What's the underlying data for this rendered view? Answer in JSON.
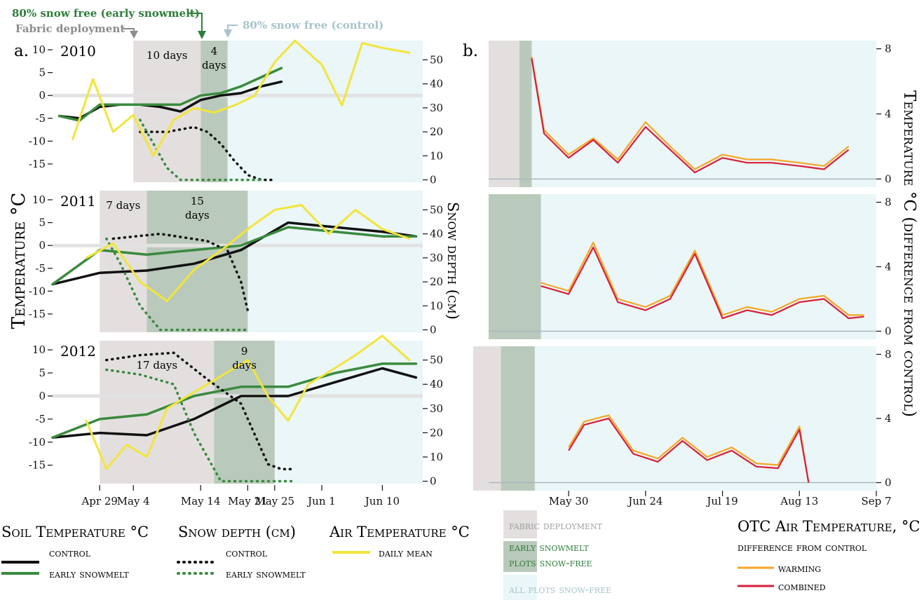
{
  "annotations": {
    "early_snowmelt": "80% snow free (early snowmelt)",
    "fabric": "Fabric deployment",
    "control": "80% snow free (control)"
  },
  "colors": {
    "fabric_bg": "#e3dfdf",
    "early_bg": "#b9c9bb",
    "snowfree_bg": "#eaf6f8",
    "soil_control": "#111111",
    "soil_early": "#3a8a3e",
    "snow_control": "#111111",
    "snow_early": "#3a8a3e",
    "air_daily": "#f2e53a",
    "warming": "#f5a623",
    "combined": "#d71f3a"
  },
  "panel_a": {
    "label": "a.",
    "ylabel_left": "Temperature °C",
    "ylabel_right": "Snow depth (cm)",
    "x_ticks": [
      "Apr 29",
      "May 4",
      "May 14",
      "May 21",
      "May 25",
      "Jun 1",
      "Jun 10"
    ],
    "left_ticks": [
      "10",
      "5",
      "0",
      "-5",
      "-10",
      "-15"
    ],
    "right_ticks": [
      "50",
      "40",
      "30",
      "20",
      "10",
      "0"
    ],
    "years": [
      {
        "year": "2010",
        "fabric_days": "10 days",
        "early_days": "4\ndays"
      },
      {
        "year": "2011",
        "fabric_days": "7 days",
        "early_days": "15\ndays"
      },
      {
        "year": "2012",
        "fabric_days": "17 days",
        "early_days": "9\ndays"
      }
    ]
  },
  "panel_b": {
    "label": "b.",
    "ylabel": "Temperature °C (difference from control)",
    "x_ticks": [
      "May 30",
      "Jun 24",
      "Jul 19",
      "Aug 13",
      "Sep 7"
    ],
    "y_ticks": [
      "8",
      "4",
      "0"
    ]
  },
  "legend": {
    "soil_title": "Soil Temperature °C",
    "soil_control": "control",
    "soil_early": "early snowmelt",
    "snow_title": "Snow depth (cm)",
    "snow_control": "control",
    "snow_early": "early snowmelt",
    "air_title": "Air Temperature °C",
    "air_daily": "daily mean",
    "fabric": "fabric deployment",
    "early_line1": "early snowmelt",
    "early_line2": "plots snow-free",
    "allfree": "all plots snow-free",
    "otc_title": "OTC Air Temperature, °C",
    "otc_sub": "difference from control",
    "warming": "warming",
    "combined": "combined"
  },
  "chart_data": [
    {
      "type": "line",
      "title": "2010",
      "x_unit": "date",
      "ylim_left": [
        -19,
        12
      ],
      "ylim_right": [
        -1,
        58
      ],
      "shading": {
        "fabric": [
          "May 4",
          "May 14"
        ],
        "early_snowfree": [
          "May 14",
          "May 18"
        ],
        "all_snowfree_from": "May 18"
      },
      "series": [
        {
          "name": "Soil control",
          "x": [
            "Apr 23",
            "Apr 26",
            "Apr 29",
            "May 2",
            "May 5",
            "May 8",
            "May 11",
            "May 14",
            "May 17",
            "May 20",
            "May 23",
            "May 26"
          ],
          "values": [
            -4.5,
            -5,
            -2.5,
            -2,
            -2,
            -2.5,
            -3.5,
            -1,
            0,
            0.5,
            2,
            3
          ]
        },
        {
          "name": "Soil early snowmelt",
          "x": [
            "Apr 23",
            "Apr 26",
            "Apr 29",
            "May 2",
            "May 5",
            "May 8",
            "May 11",
            "May 14",
            "May 17",
            "May 20",
            "May 23",
            "May 26"
          ],
          "values": [
            -4.5,
            -5.5,
            -2,
            -2,
            -2,
            -2,
            -2,
            0,
            0.5,
            2,
            4,
            6
          ]
        },
        {
          "name": "Snow control",
          "x": [
            "May 5",
            "May 9",
            "May 13",
            "May 15",
            "May 17",
            "May 19",
            "May 21",
            "May 23",
            "May 25"
          ],
          "values": [
            20,
            20,
            22,
            20,
            15,
            8,
            2,
            0,
            0
          ]
        },
        {
          "name": "Snow early snowmelt",
          "x": [
            "May 5",
            "May 7",
            "May 9",
            "May 11",
            "May 13",
            "May 15",
            "May 19",
            "May 23"
          ],
          "values": [
            25,
            15,
            5,
            0,
            0,
            0,
            0,
            0
          ]
        },
        {
          "name": "Air daily mean",
          "x": [
            "Apr 25",
            "Apr 28",
            "May 1",
            "May 4",
            "May 7",
            "May 10",
            "May 13",
            "May 16",
            "May 19",
            "May 22",
            "May 25",
            "May 28",
            "Jun 1",
            "Jun 4",
            "Jun 7",
            "Jun 10",
            "Jun 14"
          ],
          "values": [
            17,
            42,
            20,
            27,
            10,
            25,
            30,
            28,
            31,
            35,
            49,
            58,
            48,
            31,
            57,
            55,
            53
          ]
        }
      ]
    },
    {
      "type": "line",
      "title": "2011",
      "x_unit": "date",
      "ylim_left": [
        -19,
        12
      ],
      "ylim_right": [
        -1,
        58
      ],
      "shading": {
        "fabric": [
          "Apr 29",
          "May 6"
        ],
        "early_snowfree": [
          "May 6",
          "May 21"
        ],
        "all_snowfree_from": "May 21"
      },
      "series": [
        {
          "name": "Soil control",
          "x": [
            "Apr 22",
            "Apr 29",
            "May 6",
            "May 13",
            "May 20",
            "May 27",
            "Jun 3",
            "Jun 10",
            "Jun 15"
          ],
          "values": [
            -8.5,
            -6,
            -5.5,
            -4,
            -1,
            5,
            4,
            3,
            2
          ]
        },
        {
          "name": "Soil early snowmelt",
          "x": [
            "Apr 22",
            "Apr 29",
            "May 6",
            "May 13",
            "May 20",
            "May 27",
            "Jun 3",
            "Jun 10",
            "Jun 15"
          ],
          "values": [
            -8.5,
            -1,
            -2,
            -1,
            0,
            4,
            3,
            2,
            2
          ]
        },
        {
          "name": "Snow control",
          "x": [
            "May 1",
            "May 8",
            "May 15",
            "May 18",
            "May 20",
            "May 21"
          ],
          "values": [
            38,
            40,
            37,
            33,
            20,
            8
          ]
        },
        {
          "name": "Snow early snowmelt",
          "x": [
            "Apr 30",
            "May 2",
            "May 5",
            "May 8",
            "May 12",
            "May 21"
          ],
          "values": [
            38,
            28,
            10,
            0,
            0,
            0
          ]
        },
        {
          "name": "Air daily mean",
          "x": [
            "Apr 27",
            "May 1",
            "May 5",
            "May 9",
            "May 13",
            "May 17",
            "May 21",
            "May 25",
            "May 29",
            "Jun 2",
            "Jun 6",
            "Jun 10",
            "Jun 14"
          ],
          "values": [
            30,
            36,
            20,
            12,
            25,
            33,
            42,
            50,
            52,
            40,
            50,
            42,
            38
          ]
        }
      ]
    },
    {
      "type": "line",
      "title": "2012",
      "x_unit": "date",
      "ylim_left": [
        -19,
        12
      ],
      "ylim_right": [
        -1,
        58
      ],
      "shading": {
        "fabric": [
          "Apr 29",
          "May 16"
        ],
        "early_snowfree": [
          "May 16",
          "May 25"
        ],
        "all_snowfree_from": "May 25"
      },
      "series": [
        {
          "name": "Soil control",
          "x": [
            "Apr 22",
            "Apr 29",
            "May 6",
            "May 13",
            "May 20",
            "May 27",
            "Jun 3",
            "Jun 10",
            "Jun 15"
          ],
          "values": [
            -9,
            -8,
            -8.5,
            -5,
            0,
            0,
            3,
            6,
            4
          ]
        },
        {
          "name": "Soil early snowmelt",
          "x": [
            "Apr 22",
            "Apr 29",
            "May 6",
            "May 13",
            "May 20",
            "May 27",
            "Jun 3",
            "Jun 10",
            "Jun 15"
          ],
          "values": [
            -9,
            -5,
            -4,
            0,
            2,
            2,
            5,
            7,
            7
          ]
        },
        {
          "name": "Snow control",
          "x": [
            "Apr 30",
            "May 5",
            "May 10",
            "May 15",
            "May 20",
            "May 24",
            "May 26",
            "May 28"
          ],
          "values": [
            50,
            52,
            53,
            42,
            32,
            7,
            5,
            5
          ]
        },
        {
          "name": "Snow early snowmelt",
          "x": [
            "Apr 30",
            "May 5",
            "May 10",
            "May 13",
            "May 17",
            "May 21",
            "May 25",
            "May 28"
          ],
          "values": [
            46,
            44,
            40,
            20,
            0,
            0,
            0,
            0
          ]
        },
        {
          "name": "Air daily mean",
          "x": [
            "Apr 27",
            "Apr 30",
            "May 3",
            "May 6",
            "May 9",
            "May 12",
            "May 15",
            "May 18",
            "May 21",
            "May 24",
            "May 27",
            "May 30",
            "Jun 2",
            "Jun 6",
            "Jun 10",
            "Jun 14"
          ],
          "values": [
            25,
            5,
            15,
            10,
            30,
            35,
            40,
            45,
            50,
            35,
            25,
            40,
            45,
            52,
            60,
            50
          ]
        }
      ]
    },
    {
      "type": "line",
      "title": "",
      "x_unit": "date",
      "ylim": [
        -0.5,
        8.5
      ],
      "shading": {
        "fabric": [
          "May 4",
          "May 14"
        ],
        "early_snowfree": [
          "May 14",
          "May 18"
        ],
        "all_snowfree_from": "May 18"
      },
      "series": [
        {
          "name": "warming",
          "x": [
            "May 18",
            "May 22",
            "May 30",
            "Jun 7",
            "Jun 15",
            "Jun 24",
            "Jul 2",
            "Jul 10",
            "Jul 19",
            "Jul 27",
            "Aug 4",
            "Aug 13",
            "Aug 21",
            "Aug 29"
          ],
          "values": [
            7.5,
            3,
            1.5,
            2.5,
            1.2,
            3.5,
            2,
            0.6,
            1.5,
            1.2,
            1.2,
            1,
            0.8,
            2
          ]
        },
        {
          "name": "combined",
          "x": [
            "May 18",
            "May 22",
            "May 30",
            "Jun 7",
            "Jun 15",
            "Jun 24",
            "Jul 2",
            "Jul 10",
            "Jul 19",
            "Jul 27",
            "Aug 4",
            "Aug 13",
            "Aug 21",
            "Aug 29"
          ],
          "values": [
            7.4,
            2.8,
            1.3,
            2.4,
            1,
            3.2,
            1.8,
            0.4,
            1.3,
            1,
            1,
            0.8,
            0.6,
            1.8
          ]
        }
      ]
    },
    {
      "type": "line",
      "title": "",
      "x_unit": "date",
      "ylim": [
        -0.5,
        8.5
      ],
      "shading": {
        "early_snowfree": [
          "Apr 29",
          "May 21"
        ],
        "all_snowfree_from": "May 21"
      },
      "series": [
        {
          "name": "warming",
          "x": [
            "May 21",
            "May 30",
            "Jun 7",
            "Jun 15",
            "Jun 24",
            "Jul 2",
            "Jul 10",
            "Jul 19",
            "Jul 27",
            "Aug 4",
            "Aug 13",
            "Aug 21",
            "Aug 29",
            "Sep 3"
          ],
          "values": [
            3,
            2.5,
            5.5,
            2,
            1.5,
            2.2,
            5,
            1,
            1.5,
            1.2,
            2,
            2.2,
            1,
            1
          ]
        },
        {
          "name": "combined",
          "x": [
            "May 21",
            "May 30",
            "Jun 7",
            "Jun 15",
            "Jun 24",
            "Jul 2",
            "Jul 10",
            "Jul 19",
            "Jul 27",
            "Aug 4",
            "Aug 13",
            "Aug 21",
            "Aug 29",
            "Sep 3"
          ],
          "values": [
            2.8,
            2.3,
            5.2,
            1.8,
            1.3,
            2,
            4.8,
            0.8,
            1.3,
            1,
            1.8,
            2,
            0.8,
            0.9
          ]
        }
      ]
    },
    {
      "type": "line",
      "title": "",
      "x_unit": "date",
      "ylim": [
        -0.5,
        8.5
      ],
      "shading": {
        "fabric": [
          "Apr 29",
          "May 8"
        ],
        "early_snowfree": [
          "May 8",
          "May 19"
        ],
        "all_snowfree_from": "May 19"
      },
      "series": [
        {
          "name": "warming",
          "x": [
            "May 30",
            "Jun 4",
            "Jun 12",
            "Jun 20",
            "Jun 28",
            "Jul 6",
            "Jul 14",
            "Jul 22",
            "Jul 30",
            "Aug 6",
            "Aug 13",
            "Aug 16"
          ],
          "values": [
            2.2,
            3.8,
            4.2,
            2,
            1.5,
            2.8,
            1.6,
            2.2,
            1.2,
            1.1,
            3.5,
            0
          ]
        },
        {
          "name": "combined",
          "x": [
            "May 30",
            "Jun 4",
            "Jun 12",
            "Jun 20",
            "Jun 28",
            "Jul 6",
            "Jul 14",
            "Jul 22",
            "Jul 30",
            "Aug 6",
            "Aug 13",
            "Aug 16"
          ],
          "values": [
            2,
            3.6,
            4,
            1.8,
            1.3,
            2.6,
            1.4,
            2,
            1,
            0.9,
            3.3,
            0
          ]
        }
      ]
    }
  ]
}
